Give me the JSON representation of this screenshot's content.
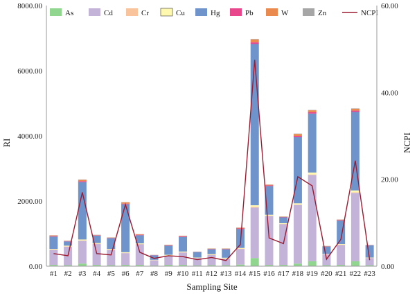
{
  "chart_data": {
    "type": "bar",
    "stacked": true,
    "categories": [
      "#1",
      "#2",
      "#3",
      "#4",
      "#5",
      "#6",
      "#7",
      "#8",
      "#9",
      "#10",
      "#11",
      "#12",
      "#13",
      "#14",
      "#15",
      "#16",
      "#17",
      "#18",
      "#19",
      "#20",
      "#21",
      "#22",
      "#23"
    ],
    "xlabel": "Sampling Site",
    "ylabel": "RI",
    "y2label": "NCPI",
    "ylim": [
      0,
      8000
    ],
    "y2lim": [
      0,
      60
    ],
    "yticks": [
      "0.00",
      "2000.00",
      "4000.00",
      "6000.00",
      "8000.00"
    ],
    "y2ticks": [
      "0.00",
      "20.00",
      "40.00",
      "60.00"
    ],
    "grid": false,
    "legend_position": "top",
    "series": [
      {
        "name": "As",
        "color": "#90d68f",
        "values": [
          40,
          30,
          80,
          40,
          30,
          40,
          40,
          20,
          40,
          40,
          25,
          30,
          30,
          50,
          250,
          40,
          40,
          80,
          150,
          30,
          40,
          150,
          30
        ]
      },
      {
        "name": "Cd",
        "color": "#c3b3d8",
        "values": [
          460,
          570,
          700,
          640,
          470,
          360,
          630,
          160,
          280,
          380,
          225,
          310,
          200,
          480,
          1550,
          1500,
          1250,
          1800,
          2650,
          330,
          610,
          2100,
          220
        ]
      },
      {
        "name": "Cr",
        "color": "#f9c49c",
        "values": [
          10,
          10,
          10,
          10,
          10,
          10,
          10,
          5,
          10,
          10,
          5,
          10,
          10,
          10,
          20,
          10,
          10,
          10,
          15,
          5,
          10,
          15,
          5
        ]
      },
      {
        "name": "Cu",
        "color": "#fff9b0",
        "values": [
          20,
          20,
          30,
          20,
          20,
          20,
          20,
          10,
          20,
          20,
          10,
          20,
          20,
          20,
          50,
          30,
          20,
          40,
          60,
          10,
          20,
          60,
          10
        ]
      },
      {
        "name": "Hg",
        "color": "#6f94cc",
        "values": [
          380,
          130,
          1760,
          230,
          330,
          1470,
          250,
          140,
          280,
          450,
          170,
          150,
          260,
          580,
          4950,
          880,
          180,
          2030,
          1810,
          230,
          720,
          2410,
          375
        ]
      },
      {
        "name": "Pb",
        "color": "#e8478b",
        "values": [
          15,
          10,
          30,
          10,
          10,
          20,
          15,
          5,
          10,
          15,
          5,
          10,
          10,
          20,
          50,
          20,
          10,
          40,
          40,
          5,
          15,
          40,
          5
        ]
      },
      {
        "name": "W",
        "color": "#ea8a4e",
        "values": [
          20,
          10,
          40,
          10,
          10,
          40,
          15,
          5,
          15,
          15,
          5,
          10,
          10,
          20,
          90,
          20,
          10,
          60,
          60,
          10,
          15,
          60,
          5
        ]
      },
      {
        "name": "Zn",
        "color": "#a6a6a6",
        "values": [
          5,
          5,
          10,
          5,
          5,
          5,
          5,
          3,
          5,
          5,
          3,
          5,
          5,
          5,
          15,
          5,
          5,
          10,
          10,
          3,
          5,
          10,
          3
        ]
      }
    ],
    "line_series": {
      "name": "NCPI",
      "color": "#9b1b30",
      "axis": "right",
      "values": [
        2.9,
        2.4,
        17.0,
        2.9,
        2.6,
        14.2,
        3.2,
        1.8,
        2.4,
        2.2,
        1.5,
        2.0,
        1.3,
        5.0,
        47.5,
        6.5,
        5.2,
        20.6,
        18.5,
        1.6,
        6.2,
        24.3,
        1.4
      ]
    }
  }
}
